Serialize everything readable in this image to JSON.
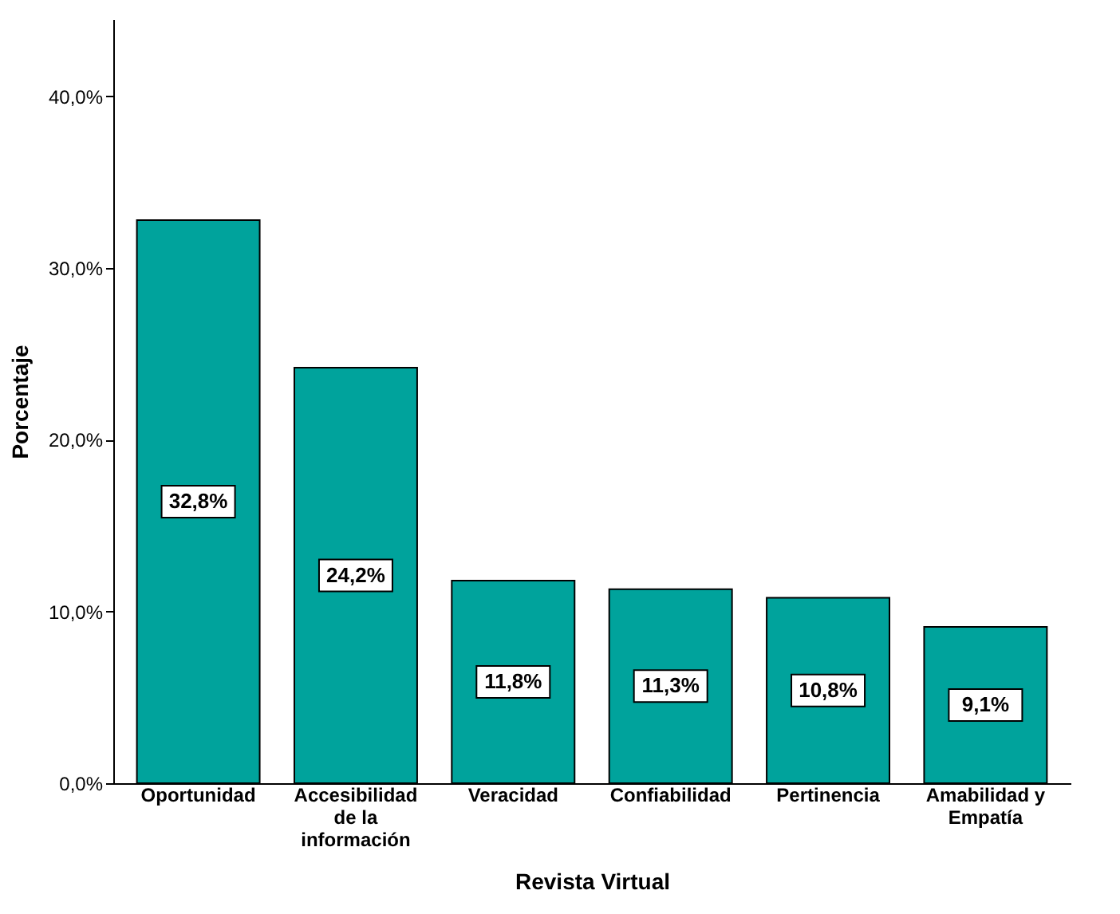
{
  "chart_data": {
    "type": "bar",
    "xlabel": "Revista Virtual",
    "ylabel": "Porcentaje",
    "categories": [
      "Oportunidad",
      "Accesibilidad\nde la\ninformación",
      "Veracidad",
      "Confiabilidad",
      "Pertinencia",
      "Amabilidad y\nEmpatía"
    ],
    "values": [
      32.8,
      24.2,
      11.8,
      11.3,
      10.8,
      9.1
    ],
    "color": "#00a39c",
    "ylim": [
      0,
      44.5
    ],
    "yticks": [
      {
        "value": 0,
        "label": "0,0%"
      },
      {
        "value": 10,
        "label": "10,0%"
      },
      {
        "value": 20,
        "label": "20,0%"
      },
      {
        "value": 30,
        "label": "30,0%"
      },
      {
        "value": 40,
        "label": "40,0%"
      }
    ],
    "value_labels": [
      "32,8%",
      "24,2%",
      "11,8%",
      "11,3%",
      "10,8%",
      "9,1%"
    ],
    "grid": false
  }
}
